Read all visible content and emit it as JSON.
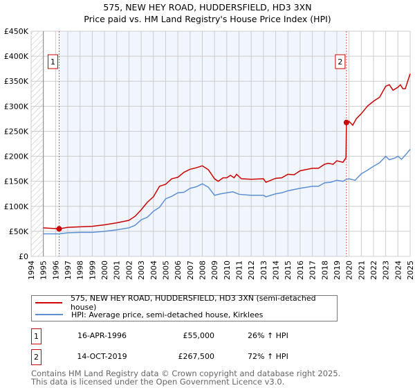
{
  "chart_data": {
    "type": "line",
    "title": "575, NEW HEY ROAD, HUDDERSFIELD, HD3 3XN",
    "subtitle": "Price paid vs. HM Land Registry's House Price Index (HPI)",
    "xlim": [
      1994,
      2025
    ],
    "ylim": [
      0,
      450000
    ],
    "xticks": [
      "1994",
      "1995",
      "1996",
      "1997",
      "1998",
      "1999",
      "2000",
      "2001",
      "2002",
      "2003",
      "2004",
      "2005",
      "2006",
      "2007",
      "2008",
      "2009",
      "2010",
      "2011",
      "2012",
      "2013",
      "2014",
      "2015",
      "2016",
      "2017",
      "2018",
      "2019",
      "2020",
      "2021",
      "2022",
      "2023",
      "2024",
      "2025"
    ],
    "yticks": [
      {
        "v": 0,
        "label": "£0"
      },
      {
        "v": 50000,
        "label": "£50K"
      },
      {
        "v": 100000,
        "label": "£100K"
      },
      {
        "v": 150000,
        "label": "£150K"
      },
      {
        "v": 200000,
        "label": "£200K"
      },
      {
        "v": 250000,
        "label": "£250K"
      },
      {
        "v": 300000,
        "label": "£300K"
      },
      {
        "v": 350000,
        "label": "£350K"
      },
      {
        "v": 400000,
        "label": "£400K"
      },
      {
        "v": 450000,
        "label": "£450K"
      }
    ],
    "grid": true,
    "series": [
      {
        "name": "575, NEW HEY ROAD, HUDDERSFIELD, HD3 3XN (semi-detached house)",
        "color": "#cc0000",
        "points": [
          [
            1995,
            57000
          ],
          [
            1996.3,
            55000
          ],
          [
            1997,
            58000
          ],
          [
            1998,
            59000
          ],
          [
            1999,
            60000
          ],
          [
            2000,
            63000
          ],
          [
            2001,
            67000
          ],
          [
            2002,
            72000
          ],
          [
            2002.5,
            80000
          ],
          [
            2003,
            93000
          ],
          [
            2003.5,
            108000
          ],
          [
            2004,
            119000
          ],
          [
            2004.5,
            140000
          ],
          [
            2005,
            144000
          ],
          [
            2005.5,
            155000
          ],
          [
            2006,
            158000
          ],
          [
            2006.5,
            168000
          ],
          [
            2007,
            174000
          ],
          [
            2007.5,
            177000
          ],
          [
            2008,
            181000
          ],
          [
            2008.5,
            173000
          ],
          [
            2009,
            155000
          ],
          [
            2009.3,
            150000
          ],
          [
            2009.7,
            157000
          ],
          [
            2010,
            157000
          ],
          [
            2010.3,
            162000
          ],
          [
            2010.6,
            157000
          ],
          [
            2010.8,
            164000
          ],
          [
            2011.2,
            155000
          ],
          [
            2012,
            154000
          ],
          [
            2013,
            155000
          ],
          [
            2013.2,
            148000
          ],
          [
            2014,
            156000
          ],
          [
            2014.5,
            157000
          ],
          [
            2015,
            164000
          ],
          [
            2015.5,
            163000
          ],
          [
            2016,
            171000
          ],
          [
            2017,
            176000
          ],
          [
            2017.5,
            176000
          ],
          [
            2018,
            184000
          ],
          [
            2018.3,
            186000
          ],
          [
            2018.7,
            184000
          ],
          [
            2019,
            191000
          ],
          [
            2019.5,
            188000
          ],
          [
            2019.75,
            197000
          ],
          [
            2019.79,
            267500
          ],
          [
            2020,
            270000
          ],
          [
            2020.3,
            262000
          ],
          [
            2020.6,
            275000
          ],
          [
            2021,
            285000
          ],
          [
            2021.5,
            300000
          ],
          [
            2022,
            310000
          ],
          [
            2022.5,
            318000
          ],
          [
            2023,
            340000
          ],
          [
            2023.3,
            343000
          ],
          [
            2023.6,
            332000
          ],
          [
            2024,
            338000
          ],
          [
            2024.2,
            343000
          ],
          [
            2024.4,
            335000
          ],
          [
            2024.6,
            335000
          ],
          [
            2024.8,
            350000
          ],
          [
            2025,
            365000
          ]
        ]
      },
      {
        "name": "HPI: Average price, semi-detached house, Kirklees",
        "color": "#5b8fd4",
        "points": [
          [
            1995,
            45000
          ],
          [
            1996.3,
            45000
          ],
          [
            1997,
            47000
          ],
          [
            1998,
            48000
          ],
          [
            1999,
            48000
          ],
          [
            2000,
            50000
          ],
          [
            2001,
            53000
          ],
          [
            2002,
            57000
          ],
          [
            2002.5,
            62000
          ],
          [
            2003,
            73000
          ],
          [
            2003.5,
            78000
          ],
          [
            2004,
            90000
          ],
          [
            2004.5,
            98000
          ],
          [
            2005,
            115000
          ],
          [
            2005.5,
            120000
          ],
          [
            2006,
            127000
          ],
          [
            2006.5,
            128000
          ],
          [
            2007,
            136000
          ],
          [
            2007.5,
            139000
          ],
          [
            2008,
            145000
          ],
          [
            2008.5,
            138000
          ],
          [
            2009,
            122000
          ],
          [
            2009.5,
            125000
          ],
          [
            2010,
            127000
          ],
          [
            2010.5,
            129000
          ],
          [
            2011,
            124000
          ],
          [
            2012,
            122000
          ],
          [
            2013,
            122000
          ],
          [
            2013.2,
            119000
          ],
          [
            2014,
            125000
          ],
          [
            2014.5,
            127000
          ],
          [
            2015,
            131000
          ],
          [
            2016,
            136000
          ],
          [
            2017,
            140000
          ],
          [
            2017.5,
            140000
          ],
          [
            2018,
            147000
          ],
          [
            2018.5,
            148000
          ],
          [
            2019,
            152000
          ],
          [
            2019.5,
            150000
          ],
          [
            2019.8,
            154000
          ],
          [
            2020,
            155000
          ],
          [
            2020.5,
            152000
          ],
          [
            2021,
            165000
          ],
          [
            2021.5,
            172000
          ],
          [
            2022,
            180000
          ],
          [
            2022.5,
            187000
          ],
          [
            2023,
            200000
          ],
          [
            2023.3,
            193000
          ],
          [
            2023.8,
            197000
          ],
          [
            2024,
            200000
          ],
          [
            2024.3,
            194000
          ],
          [
            2024.7,
            205000
          ],
          [
            2025,
            214000
          ]
        ]
      }
    ],
    "sales": [
      {
        "id": "1",
        "x": 1996.29,
        "y": 55000
      },
      {
        "id": "2",
        "x": 2019.79,
        "y": 267500
      }
    ],
    "legend": "bottom"
  },
  "table": [
    {
      "id": "1",
      "date": "16-APR-1996",
      "price": "£55,000",
      "hpi": "26% ↑ HPI"
    },
    {
      "id": "2",
      "date": "14-OCT-2019",
      "price": "£267,500",
      "hpi": "72% ↑ HPI"
    }
  ],
  "footer": {
    "line1": "Contains HM Land Registry data © Crown copyright and database right 2025.",
    "line2": "This data is licensed under the Open Government Licence v3.0."
  }
}
